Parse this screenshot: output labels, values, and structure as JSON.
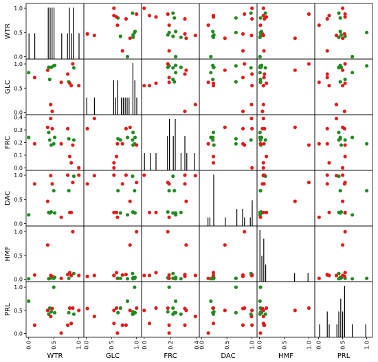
{
  "chart_data": {
    "type": "scatter",
    "variables": [
      "WTR",
      "GLC",
      "FRC",
      "DAC",
      "HMF",
      "PRL"
    ],
    "diagonal": "histogram",
    "colors": {
      "red": "#e41a1c",
      "green": "#228b22",
      "hist": "#000000"
    },
    "ranges": {
      "WTR": [
        -0.05,
        1.1
      ],
      "GLC": [
        -0.05,
        1.1
      ],
      "FRC": [
        -0.02,
        0.42
      ],
      "DAC": [
        -0.05,
        1.1
      ],
      "HMF": [
        -0.05,
        1.12
      ],
      "PRL": [
        -0.08,
        1.12
      ]
    },
    "ticks": {
      "WTR": {
        "row": [
          "0.0",
          "0.5",
          "1.0"
        ],
        "col": [
          "0.0",
          "0.5",
          "1.0"
        ],
        "rowv": [
          0,
          0.5,
          1
        ],
        "colv": [
          0,
          0.5,
          1
        ]
      },
      "GLC": {
        "row": [
          "0.0",
          "0.5",
          "1.0"
        ],
        "col": [
          "0.0",
          "0.5",
          "1.0"
        ],
        "rowv": [
          0,
          0.5,
          1
        ],
        "colv": [
          0,
          0.5,
          1
        ]
      },
      "FRC": {
        "row": [
          "0.0",
          "0.1",
          "0.2",
          "0.3",
          "0.4"
        ],
        "col": [
          "0.0",
          "0.2",
          "0.4"
        ],
        "rowv": [
          0,
          0.1,
          0.2,
          0.3,
          0.4
        ],
        "colv": [
          0,
          0.2,
          0.4
        ]
      },
      "DAC": {
        "row": [
          "0.0",
          "0.5",
          "1.0"
        ],
        "col": [
          "0.0",
          "0.5",
          "1.0"
        ],
        "rowv": [
          0,
          0.5,
          1
        ],
        "colv": [
          0,
          0.5,
          1
        ]
      },
      "HMF": {
        "row": [
          "0.0",
          "0.5",
          "1.0"
        ],
        "col": [
          "0.0",
          "0.5",
          "1.0"
        ],
        "rowv": [
          0,
          0.5,
          1
        ],
        "colv": [
          0,
          0.5,
          1
        ]
      },
      "PRL": {
        "row": [
          "0.0",
          "0.5",
          "1.0"
        ],
        "col": [
          "0.0",
          "0.5",
          "1.0"
        ],
        "rowv": [
          0,
          0.5,
          1
        ],
        "colv": [
          0,
          0.5,
          1
        ]
      }
    },
    "points": [
      {
        "WTR": 0.0,
        "GLC": 0.82,
        "FRC": 0.24,
        "DAC": 0.18,
        "HMF": 0.01,
        "PRL": 0.7,
        "group": "green"
      },
      {
        "WTR": 0.12,
        "GLC": 0.72,
        "FRC": 0.19,
        "DAC": 0.82,
        "HMF": 0.09,
        "PRL": 0.18,
        "group": "red"
      },
      {
        "WTR": 0.38,
        "GLC": 0.87,
        "FRC": 0.32,
        "DAC": 0.46,
        "HMF": 0.72,
        "PRL": 0.5,
        "group": "red"
      },
      {
        "WTR": 0.4,
        "GLC": 0.93,
        "FRC": 0.28,
        "DAC": 0.23,
        "HMF": 0.01,
        "PRL": 0.42,
        "group": "green"
      },
      {
        "WTR": 0.42,
        "GLC": 0.68,
        "FRC": 0.22,
        "DAC": 0.22,
        "HMF": 0.02,
        "PRL": 0.55,
        "group": "green"
      },
      {
        "WTR": 0.45,
        "GLC": 0.93,
        "FRC": 0.18,
        "DAC": 0.24,
        "HMF": 0.03,
        "PRL": 0.47,
        "group": "green"
      },
      {
        "WTR": 0.44,
        "GLC": 0.16,
        "FRC": 0.39,
        "DAC": 0.99,
        "HMF": 0.08,
        "PRL": 0.37,
        "group": "red"
      },
      {
        "WTR": 0.47,
        "GLC": 0.02,
        "FRC": 0.31,
        "DAC": 0.82,
        "HMF": 0.06,
        "PRL": 0.54,
        "group": "red"
      },
      {
        "WTR": 0.5,
        "GLC": 0.96,
        "FRC": 0.19,
        "DAC": 0.68,
        "HMF": 0.02,
        "PRL": 1.0,
        "group": "green"
      },
      {
        "WTR": 0.52,
        "GLC": 0.97,
        "FRC": 0.24,
        "DAC": 0.22,
        "HMF": 0.04,
        "PRL": 0.45,
        "group": "green"
      },
      {
        "WTR": 0.65,
        "GLC": 0.62,
        "FRC": 0.19,
        "DAC": 0.13,
        "HMF": 0.02,
        "PRL": 0.01,
        "group": "red"
      },
      {
        "WTR": 0.78,
        "GLC": 0.79,
        "FRC": 0.31,
        "DAC": 1.0,
        "HMF": 0.1,
        "PRL": 0.18,
        "group": "red"
      },
      {
        "WTR": 0.8,
        "GLC": 0.63,
        "FRC": 0.23,
        "DAC": 0.68,
        "HMF": 0.02,
        "PRL": 0.45,
        "group": "green"
      },
      {
        "WTR": 0.82,
        "GLC": 0.6,
        "FRC": 0.09,
        "DAC": 0.23,
        "HMF": 0.14,
        "PRL": 0.55,
        "group": "red"
      },
      {
        "WTR": 0.85,
        "GLC": 0.55,
        "FRC": 0.04,
        "DAC": 0.23,
        "HMF": 0.08,
        "PRL": 0.22,
        "group": "red"
      },
      {
        "WTR": 0.88,
        "GLC": 1.0,
        "FRC": 0.18,
        "DAC": 0.85,
        "HMF": 1.0,
        "PRL": 0.55,
        "group": "red"
      },
      {
        "WTR": 0.9,
        "GLC": 0.92,
        "FRC": 0.22,
        "DAC": 0.98,
        "HMF": 0.12,
        "PRL": 0.42,
        "group": "green"
      },
      {
        "WTR": 1.0,
        "GLC": 0.55,
        "FRC": 0.0,
        "DAC": 1.0,
        "HMF": 0.08,
        "PRL": 0.5,
        "group": "red"
      }
    ]
  }
}
